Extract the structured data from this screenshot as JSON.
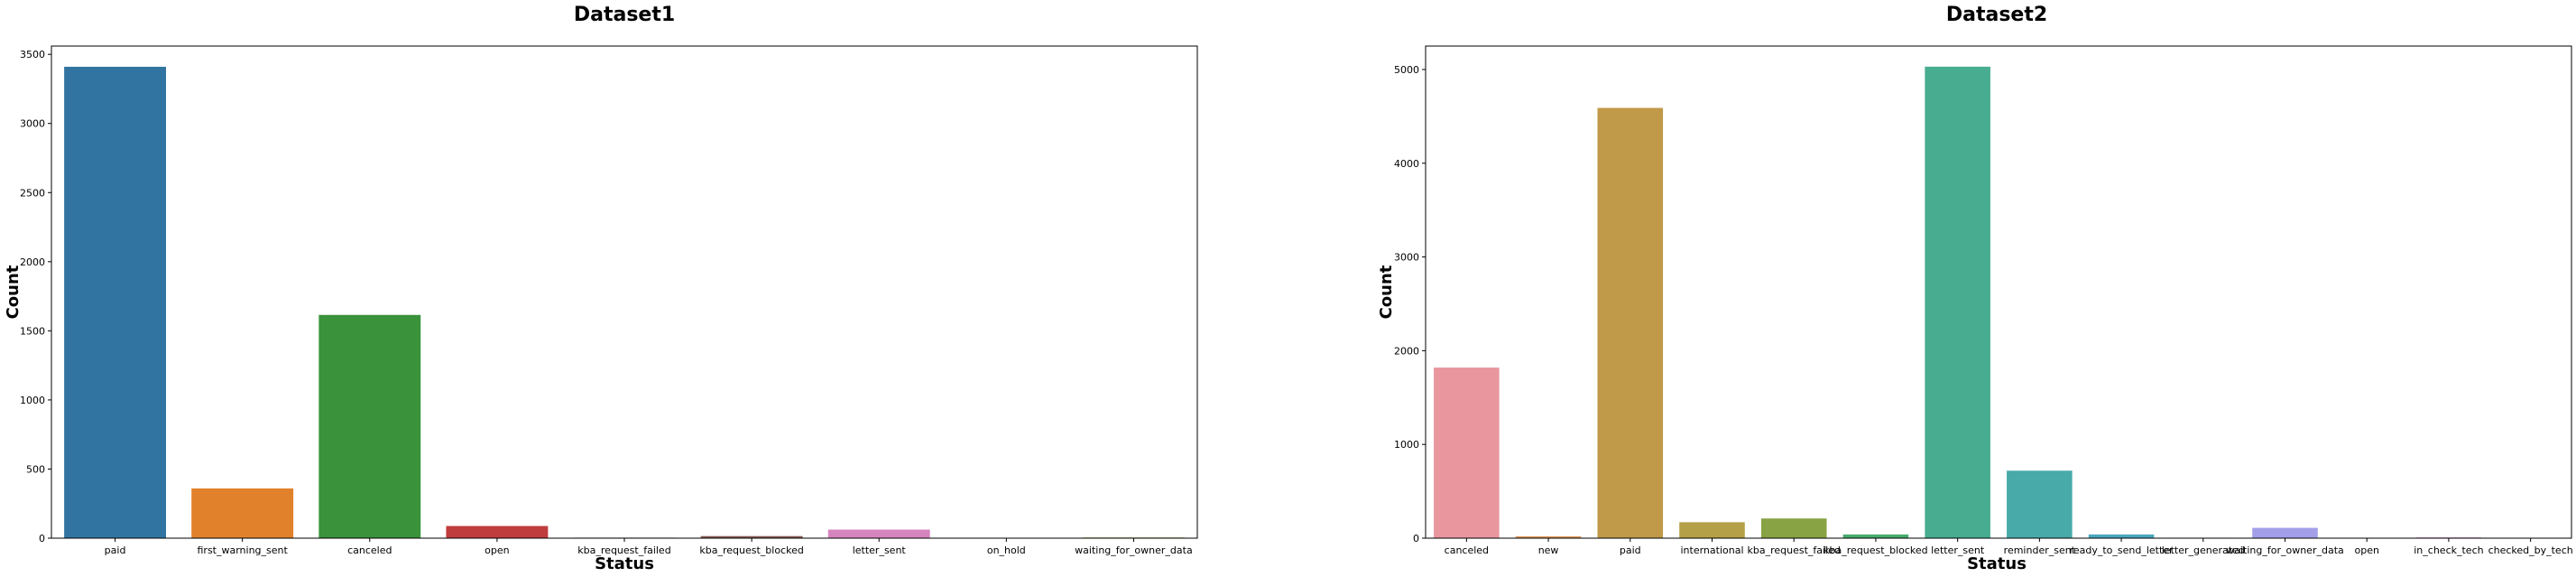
{
  "chart_data": [
    {
      "type": "bar",
      "title": "Dataset1",
      "xlabel": "Status",
      "ylabel": "Count",
      "ylim": [
        0,
        3560
      ],
      "yticks": [
        0,
        500,
        1000,
        1500,
        2000,
        2500,
        3000,
        3500
      ],
      "grid": false,
      "categories": [
        "paid",
        "first_warning_sent",
        "canceled",
        "open",
        "kba_request_failed",
        "kba_request_blocked",
        "letter_sent",
        "on_hold",
        "waiting_for_owner_data"
      ],
      "values": [
        3410,
        360,
        1615,
        88,
        4,
        15,
        62,
        2,
        5
      ],
      "colors": [
        "#3274a1",
        "#e1812c",
        "#3a923a",
        "#c03d3e",
        "#9372b2",
        "#845b53",
        "#d684bd",
        "#7f7f7f",
        "#a9aa35"
      ]
    },
    {
      "type": "bar",
      "title": "Dataset2",
      "xlabel": "Status",
      "ylabel": "Count",
      "ylim": [
        0,
        5250
      ],
      "yticks": [
        0,
        1000,
        2000,
        3000,
        4000,
        5000
      ],
      "grid": false,
      "categories": [
        "canceled",
        "new",
        "paid",
        "international",
        "kba_request_failed",
        "kba_request_blocked",
        "letter_sent",
        "reminder_sent",
        "ready_to_send_letter",
        "letter_generated",
        "waiting_for_owner_data",
        "open",
        "in_check_tech",
        "checked_by_tech"
      ],
      "values": [
        1820,
        20,
        4590,
        170,
        210,
        40,
        5030,
        720,
        40,
        5,
        110,
        3,
        8,
        3
      ],
      "colors": [
        "#e9969f",
        "#de9456",
        "#c09949",
        "#b4a046",
        "#87a343",
        "#46ad6b",
        "#48ad90",
        "#48aaa9",
        "#4aa7c0",
        "#56a1e1",
        "#a29fe8",
        "#d98fe5",
        "#e18cce",
        "#e88fb7"
      ]
    }
  ]
}
